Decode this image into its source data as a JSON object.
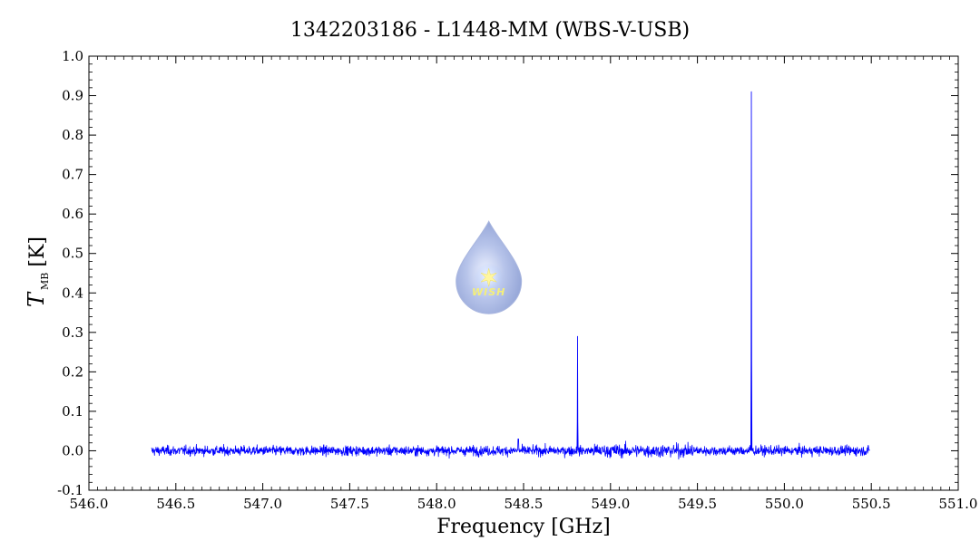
{
  "chart_data": {
    "type": "line",
    "title": "1342203186 - L1448-MM (WBS-V-USB)",
    "xlabel": "Frequency [GHz]",
    "ylabel_symbol": "T",
    "ylabel_subscript": "MB",
    "ylabel_unit": "[K]",
    "xlim": [
      546.0,
      551.0
    ],
    "ylim": [
      -0.1,
      1.0
    ],
    "x_ticks": [
      "546.0",
      "546.5",
      "547.0",
      "547.5",
      "548.0",
      "548.5",
      "549.0",
      "549.5",
      "550.0",
      "550.5",
      "551.0"
    ],
    "y_ticks": [
      "-0.1",
      "0.0",
      "0.1",
      "0.2",
      "0.3",
      "0.4",
      "0.5",
      "0.6",
      "0.7",
      "0.8",
      "0.9",
      "1.0"
    ],
    "series_color": "#0000ff",
    "spectrum_range": [
      546.36,
      550.49
    ],
    "baseline_level": 0.0,
    "noise_rms": 0.006,
    "emission_lines": [
      {
        "x": 548.81,
        "y": 0.29
      },
      {
        "x": 549.81,
        "y": 0.91
      }
    ],
    "grid": false,
    "legend": "none",
    "logo": {
      "text": "WISH",
      "icon": "water-drop-star-logo",
      "position_data": {
        "x": 548.3,
        "y": 0.43
      }
    }
  }
}
